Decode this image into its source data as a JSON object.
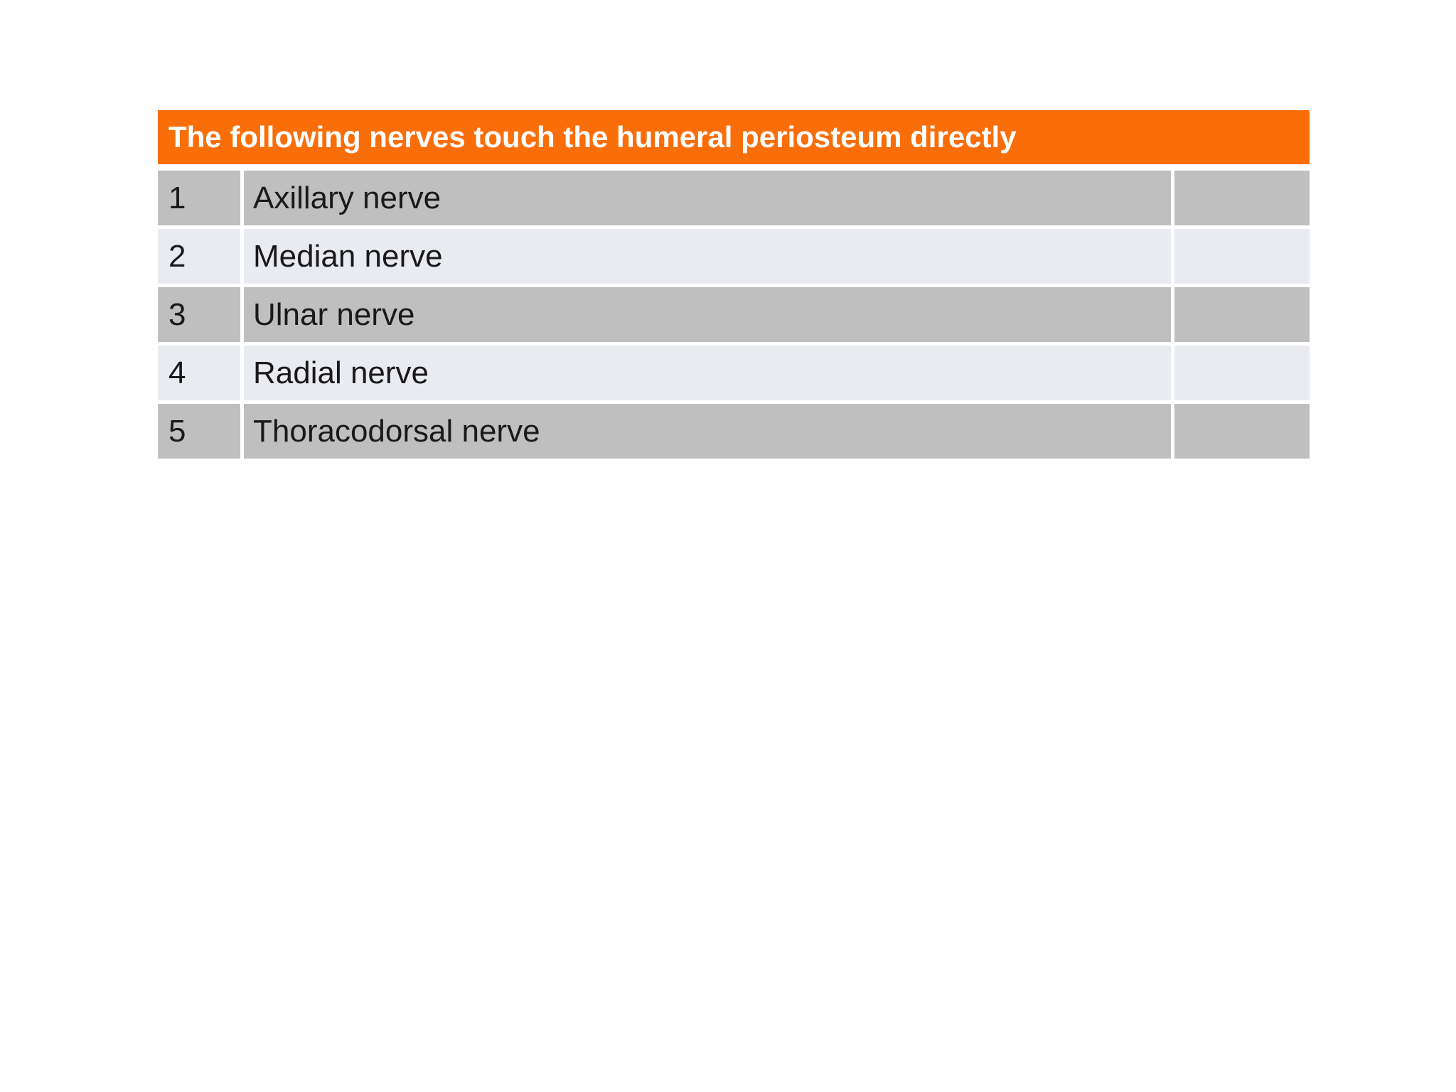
{
  "table": {
    "title": "The following nerves touch the humeral periosteum directly",
    "rows": [
      {
        "num": "1",
        "label": "Axillary nerve"
      },
      {
        "num": "2",
        "label": "Median nerve"
      },
      {
        "num": "3",
        "label": "Ulnar nerve"
      },
      {
        "num": "4",
        "label": "Radial nerve"
      },
      {
        "num": "5",
        "label": "Thoracodorsal nerve"
      }
    ]
  },
  "colors": {
    "page_bg": "#FFFFFF",
    "header_bg": "#FA6E0A",
    "header_text": "#FFFFFF",
    "row_dark": "#BFBFBF",
    "row_light": "#E9EBF1",
    "body_text": "#1A1A1A"
  }
}
